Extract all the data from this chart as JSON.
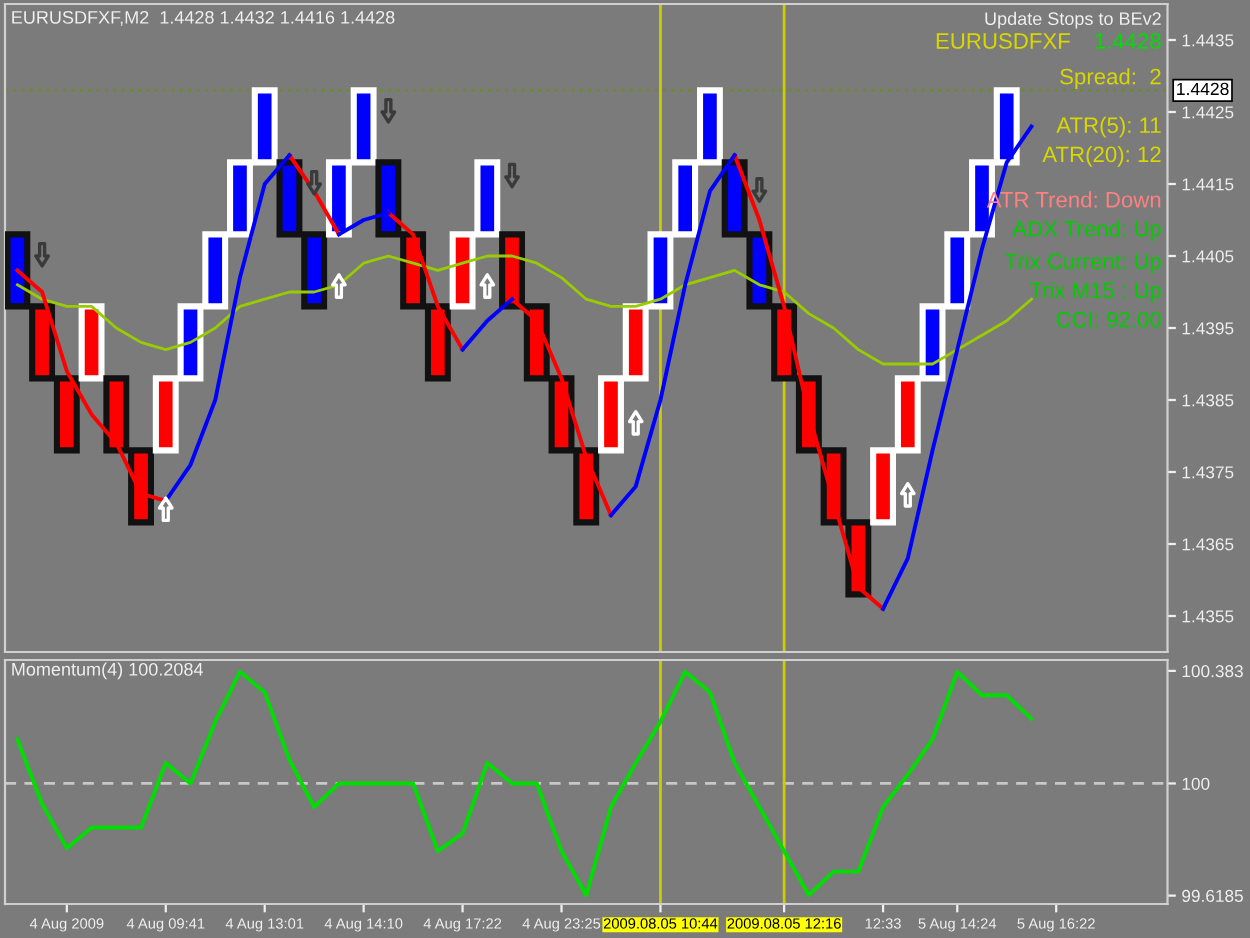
{
  "chart_data": [
    {
      "type": "candlestick",
      "title": "EURUSDFXF,M2  1.4428 1.4432 1.4416 1.4428",
      "categories": [
        null,
        null,
        "4 Aug 2009",
        null,
        null,
        null,
        "4 Aug 09:41",
        null,
        null,
        null,
        "4 Aug 13:01",
        null,
        null,
        null,
        "4 Aug 14:10",
        null,
        null,
        null,
        "4 Aug 17:22",
        null,
        null,
        null,
        "4 Aug 23:25",
        null,
        null,
        null,
        "2009.08.05 10:44",
        null,
        null,
        null,
        null,
        "2009.08.05 12:16",
        null,
        null,
        null,
        "12:33",
        null,
        null,
        "5 Aug 14:24",
        null,
        null,
        null,
        "5 Aug 16:22",
        null,
        null,
        null,
        null
      ],
      "ohlc": [
        [
          1.4408,
          1.4408,
          1.4398,
          1.4398
        ],
        [
          1.4398,
          1.4398,
          1.4388,
          1.4388
        ],
        [
          1.4388,
          1.4388,
          1.4378,
          1.4378
        ],
        [
          1.4388,
          1.4398,
          1.4388,
          1.4398
        ],
        [
          1.4388,
          1.4388,
          1.4378,
          1.4378
        ],
        [
          1.4378,
          1.4378,
          1.4368,
          1.4368
        ],
        [
          1.4378,
          1.4388,
          1.4378,
          1.4388
        ],
        [
          1.4388,
          1.4398,
          1.4388,
          1.4398
        ],
        [
          1.4398,
          1.4408,
          1.4398,
          1.4408
        ],
        [
          1.4408,
          1.4418,
          1.4408,
          1.4418
        ],
        [
          1.4418,
          1.4428,
          1.4418,
          1.4428
        ],
        [
          1.4418,
          1.4418,
          1.4408,
          1.4408
        ],
        [
          1.4408,
          1.4408,
          1.4398,
          1.4398
        ],
        [
          1.4408,
          1.4418,
          1.4408,
          1.4418
        ],
        [
          1.4418,
          1.4428,
          1.4418,
          1.4428
        ],
        [
          1.4418,
          1.4418,
          1.4408,
          1.4408
        ],
        [
          1.4408,
          1.4408,
          1.4398,
          1.4398
        ],
        [
          1.4398,
          1.4398,
          1.4388,
          1.4388
        ],
        [
          1.4398,
          1.4408,
          1.4398,
          1.4408
        ],
        [
          1.4408,
          1.4418,
          1.4408,
          1.4418
        ],
        [
          1.4408,
          1.4408,
          1.4398,
          1.4398
        ],
        [
          1.4398,
          1.4398,
          1.4388,
          1.4388
        ],
        [
          1.4388,
          1.4388,
          1.4378,
          1.4378
        ],
        [
          1.4378,
          1.4378,
          1.4368,
          1.4368
        ],
        [
          1.4378,
          1.4388,
          1.4378,
          1.4388
        ],
        [
          1.4388,
          1.4398,
          1.4388,
          1.4398
        ],
        [
          1.4398,
          1.4408,
          1.4398,
          1.4408
        ],
        [
          1.4408,
          1.4418,
          1.4408,
          1.4418
        ],
        [
          1.4418,
          1.4428,
          1.4418,
          1.4428
        ],
        [
          1.4418,
          1.4418,
          1.4408,
          1.4408
        ],
        [
          1.4408,
          1.4408,
          1.4398,
          1.4398
        ],
        [
          1.4398,
          1.4398,
          1.4388,
          1.4388
        ],
        [
          1.4388,
          1.4388,
          1.4378,
          1.4378
        ],
        [
          1.4378,
          1.4378,
          1.4368,
          1.4368
        ],
        [
          1.4368,
          1.4368,
          1.4358,
          1.4358
        ],
        [
          1.4368,
          1.4378,
          1.4368,
          1.4378
        ],
        [
          1.4378,
          1.4388,
          1.4378,
          1.4388
        ],
        [
          1.4388,
          1.4398,
          1.4388,
          1.4398
        ],
        [
          1.4398,
          1.4408,
          1.4398,
          1.4408
        ],
        [
          1.4408,
          1.4418,
          1.4408,
          1.4418
        ],
        [
          1.4418,
          1.4428,
          1.4418,
          1.4428
        ],
        null,
        null,
        null,
        null,
        null,
        null
      ],
      "colors": [
        "#0000ff",
        "#ff0000",
        "#ff0000",
        "#ff0000",
        "#ff0000",
        "#ff0000",
        "#ff0000",
        "#0000ff",
        "#0000ff",
        "#0000ff",
        "#0000ff",
        "#0000ff",
        "#0000ff",
        "#0000ff",
        "#0000ff",
        "#0000ff",
        "#ff0000",
        "#ff0000",
        "#ff0000",
        "#0000ff",
        "#ff0000",
        "#ff0000",
        "#ff0000",
        "#ff0000",
        "#ff0000",
        "#ff0000",
        "#0000ff",
        "#0000ff",
        "#0000ff",
        "#0000ff",
        "#0000ff",
        "#ff0000",
        "#ff0000",
        "#ff0000",
        "#ff0000",
        "#ff0000",
        "#ff0000",
        "#0000ff",
        "#0000ff",
        "#0000ff",
        "#0000ff",
        null,
        null,
        null,
        null,
        null,
        null
      ],
      "series": [
        {
          "type": "line",
          "color": "#99cc00",
          "values": [
            1.4401,
            1.4399,
            1.4398,
            1.4398,
            1.4395,
            1.4393,
            1.4392,
            1.4393,
            1.4395,
            1.4398,
            1.4399,
            1.44,
            1.44,
            1.4401,
            1.4404,
            1.4405,
            1.4404,
            1.4403,
            1.4404,
            1.4405,
            1.4405,
            1.4404,
            1.4402,
            1.4399,
            1.4398,
            1.4398,
            1.4399,
            1.4401,
            1.4402,
            1.4403,
            1.4401,
            1.44,
            1.4397,
            1.4395,
            1.4392,
            1.439,
            1.439,
            1.439,
            1.4392,
            1.4394,
            1.4396,
            1.4399,
            null,
            null,
            null,
            null,
            null
          ]
        },
        {
          "type": "line",
          "color": "#ff0000",
          "values": [
            1.4403,
            1.44,
            1.4389,
            1.4383,
            1.4379,
            1.4372,
            1.4371,
            null,
            null,
            null,
            null,
            1.4419,
            1.4414,
            1.4408,
            null,
            1.4411,
            1.4408,
            1.4398,
            1.4392,
            null,
            1.4399,
            1.4396,
            1.4388,
            1.4377,
            1.4369,
            null,
            null,
            null,
            null,
            1.4419,
            1.441,
            1.4398,
            1.4383,
            1.4371,
            1.4359,
            1.4356,
            null,
            null,
            null,
            null,
            null,
            null,
            null,
            null,
            null,
            null,
            null
          ]
        },
        {
          "type": "line",
          "color": "#0000ff",
          "values": [
            null,
            null,
            null,
            null,
            null,
            null,
            1.4371,
            1.4376,
            1.4385,
            1.4402,
            1.4415,
            1.4419,
            null,
            1.4408,
            1.441,
            1.4411,
            null,
            null,
            1.4392,
            1.4396,
            1.4399,
            null,
            null,
            null,
            1.4369,
            1.4373,
            1.4385,
            1.4401,
            1.4414,
            1.4419,
            null,
            null,
            null,
            null,
            null,
            1.4356,
            1.4363,
            1.4378,
            1.4392,
            1.4406,
            1.4418,
            1.4423,
            null,
            null,
            null,
            null,
            null
          ]
        },
        {
          "type": "scatter",
          "marker": "triangle_down",
          "color": "#3a3a3a",
          "values": [
            null,
            1.4405,
            null,
            null,
            null,
            null,
            null,
            null,
            null,
            null,
            null,
            null,
            1.4415,
            null,
            null,
            1.4425,
            null,
            null,
            null,
            null,
            1.4416,
            null,
            null,
            null,
            null,
            null,
            null,
            null,
            null,
            null,
            1.4414,
            null,
            null,
            null,
            null,
            null,
            null,
            null,
            null,
            null,
            null,
            null,
            null,
            null,
            null,
            null,
            null
          ]
        },
        {
          "type": "scatter",
          "marker": "triangle",
          "color": "#ffffff",
          "values": [
            null,
            null,
            null,
            null,
            null,
            null,
            1.437,
            null,
            null,
            null,
            null,
            null,
            null,
            1.4401,
            null,
            null,
            null,
            null,
            null,
            1.4401,
            null,
            null,
            null,
            null,
            null,
            1.4382,
            null,
            null,
            null,
            null,
            null,
            null,
            null,
            null,
            null,
            null,
            1.4372,
            null,
            null,
            null,
            null,
            null,
            null,
            null,
            null,
            null,
            null
          ]
        }
      ],
      "ylim": [
        1.435,
        1.444
      ],
      "yticks": [
        1.4355,
        1.4365,
        1.4375,
        1.4385,
        1.4395,
        1.4405,
        1.4415,
        1.4425,
        1.4435
      ],
      "tick_labels": "y",
      "legend": false,
      "ref_lines": [
        {
          "axis": "y",
          "value": 1.4428,
          "label": "1.4428",
          "color": "#6b8e23",
          "line_style": "dotted"
        },
        {
          "axis": "x",
          "value": "2009.08.05 10:44",
          "color": "#cccc00"
        },
        {
          "axis": "x",
          "value": "2009.08.05 12:16",
          "color": "#cccc00"
        }
      ],
      "annotations": [
        "Update Stops to BEv2",
        "EURUSDFXF",
        "1.4428",
        "Spread:  2",
        "ATR(5): 11",
        "ATR(20): 12",
        "ATR Trend: Down",
        "ADX Trend: Up",
        "Trix Current: Up",
        "Trix M15 : Up",
        "CCI: 92.00"
      ]
    },
    {
      "type": "line",
      "title": "Momentum(4) 100.2084",
      "color": "#00dd00",
      "categories": [
        null,
        null,
        "4 Aug 2009",
        null,
        null,
        null,
        "4 Aug 09:41",
        null,
        null,
        null,
        "4 Aug 13:01",
        null,
        null,
        null,
        "4 Aug 14:10",
        null,
        null,
        null,
        "4 Aug 17:22",
        null,
        null,
        null,
        "4 Aug 23:25",
        null,
        null,
        null,
        "2009.08.05 10:44",
        null,
        null,
        null,
        null,
        "2009.08.05 12:16",
        null,
        null,
        null,
        "12:33",
        null,
        null,
        "5 Aug 14:24",
        null,
        null,
        null,
        "5 Aug 16:22",
        null,
        null,
        null,
        null
      ],
      "values": [
        100.15,
        99.93,
        99.78,
        99.85,
        99.85,
        99.85,
        100.07,
        100.0,
        100.21,
        100.38,
        100.31,
        100.08,
        99.92,
        100.0,
        100.0,
        100.0,
        100.0,
        99.77,
        99.83,
        100.07,
        100.0,
        100.0,
        99.77,
        99.62,
        99.92,
        100.07,
        100.21,
        100.38,
        100.31,
        100.07,
        99.92,
        99.77,
        99.62,
        99.7,
        99.7,
        99.92,
        100.03,
        100.15,
        100.38,
        100.3,
        100.3,
        100.22,
        null,
        null,
        null,
        null,
        null
      ],
      "ylim": [
        99.59,
        100.42
      ],
      "yticks": [
        99.6185,
        100,
        100.383
      ],
      "legend": false,
      "ref_lines": [
        {
          "axis": "y",
          "value": 100,
          "color": "#c8c8c8",
          "line_style": "dashed"
        },
        {
          "axis": "x",
          "value": "2009.08.05 10:44",
          "color": "#cccc00"
        },
        {
          "axis": "x",
          "value": "2009.08.05 12:16",
          "color": "#cccc00"
        }
      ]
    }
  ]
}
